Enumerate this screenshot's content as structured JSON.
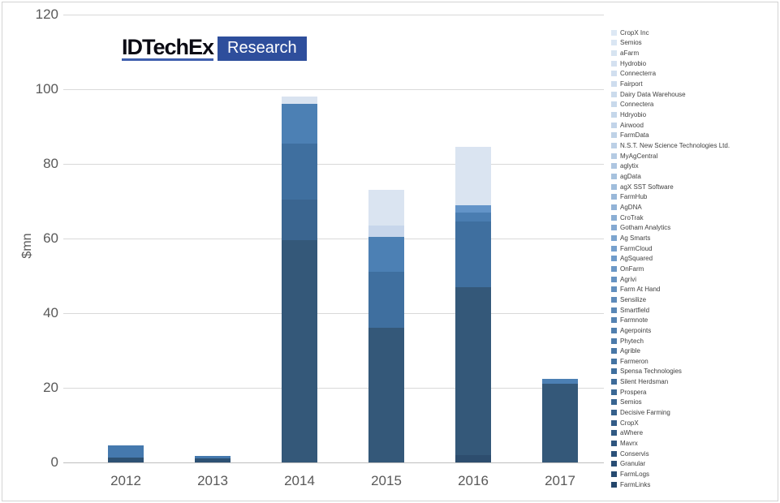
{
  "logo": {
    "brand": "IDTechEx",
    "product": "Research",
    "underline_color": "#3f5fae",
    "box_color": "#2e4e9c"
  },
  "chart_data": {
    "type": "bar",
    "stacked": true,
    "title": "",
    "xlabel": "",
    "ylabel": "$mn",
    "ylim": [
      0,
      120
    ],
    "yticks": [
      0,
      20,
      40,
      60,
      80,
      100,
      120
    ],
    "grid": "horizontal",
    "legend_position": "right",
    "categories": [
      "2012",
      "2013",
      "2014",
      "2015",
      "2016",
      "2017"
    ],
    "totals": [
      4.6,
      1.7,
      98,
      73,
      84.5,
      22.3
    ],
    "bars": [
      {
        "year": "2012",
        "total": 4.6,
        "segments": [
          {
            "value": 1.4,
            "color": "#2d5173"
          },
          {
            "value": 3.2,
            "color": "#4579ae"
          }
        ]
      },
      {
        "year": "2013",
        "total": 1.7,
        "segments": [
          {
            "value": 1.1,
            "color": "#2d5173"
          },
          {
            "value": 0.6,
            "color": "#4579ae"
          }
        ]
      },
      {
        "year": "2014",
        "total": 98,
        "segments": [
          {
            "value": 59.5,
            "color": "#345879"
          },
          {
            "value": 11.0,
            "color": "#3a6590"
          },
          {
            "value": 15.0,
            "color": "#3f6f9f"
          },
          {
            "value": 10.5,
            "color": "#4c80b4"
          },
          {
            "value": 2.0,
            "color": "#d9e3f0"
          }
        ]
      },
      {
        "year": "2015",
        "total": 73,
        "segments": [
          {
            "value": 36.0,
            "color": "#345879"
          },
          {
            "value": 15.0,
            "color": "#3f6f9f"
          },
          {
            "value": 9.5,
            "color": "#4c80b4"
          },
          {
            "value": 3.0,
            "color": "#c7d6eb"
          },
          {
            "value": 9.5,
            "color": "#dae4f1"
          }
        ]
      },
      {
        "year": "2016",
        "total": 84.5,
        "segments": [
          {
            "value": 2.0,
            "color": "#2d4d6e"
          },
          {
            "value": 45.0,
            "color": "#345879"
          },
          {
            "value": 17.5,
            "color": "#3f6f9f"
          },
          {
            "value": 2.5,
            "color": "#4a7db1"
          },
          {
            "value": 2.0,
            "color": "#6394c8"
          },
          {
            "value": 15.5,
            "color": "#dae4f1"
          }
        ]
      },
      {
        "year": "2017",
        "total": 22.3,
        "segments": [
          {
            "value": 21.0,
            "color": "#345879"
          },
          {
            "value": 1.3,
            "color": "#4c80b4"
          }
        ]
      }
    ],
    "legend": [
      "CropX Inc",
      "Semios",
      "aFarm",
      "Hydrobio",
      "Connecterra",
      "Fairport",
      "Dairy Data Warehouse",
      "Connectera",
      "Hdryobio",
      "Airwood",
      "FarmData",
      "N.S.T. New Science Technologies Ltd.",
      "MyAgCentral",
      "aglytix",
      "agData",
      "agX SST Software",
      "FarmHub",
      "AgDNA",
      "CroTrak",
      "Gotham Analytics",
      "Ag Smarts",
      "FarmCloud",
      "AgSquared",
      "OnFarm",
      "Agrivi",
      "Farm At Hand",
      "Sensilize",
      "Smartfield",
      "Farmnote",
      "Agerpoints",
      "Phytech",
      "Agrible",
      "Farmeron",
      "Spensa Technologies",
      "Silent Herdsman",
      "Prospera",
      "Semios",
      "Decisive Farming",
      "CropX",
      "aWhere",
      "Mavrx",
      "Conservis",
      "Granular",
      "FarmLogs",
      "FarmLinks"
    ],
    "legend_color_stops": [
      "#dde8f4",
      "#bcd0e6",
      "#6f9bca",
      "#3f6f9e",
      "#24466b"
    ],
    "colors": {
      "gridline": "#d9d9d9",
      "axis_line": "#bfbfbf",
      "tick_text": "#595959"
    }
  }
}
